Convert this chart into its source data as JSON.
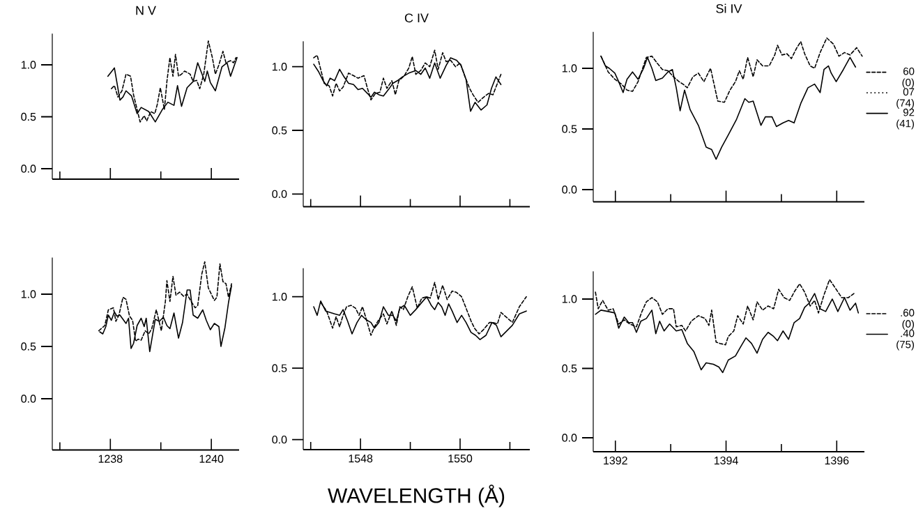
{
  "chart_data": [
    {
      "type": "line",
      "title": "N V",
      "xlim": [
        1236.85,
        1240.55
      ],
      "ylim": [
        -0.1,
        1.3
      ],
      "xticks": [
        {
          "value": 1237,
          "label": null
        },
        1238,
        {
          "value": 1239,
          "label": null
        },
        1240
      ],
      "yticks": [
        {
          "value": 0,
          "label": "0.0"
        },
        {
          "value": 0.5,
          "label": "0.5"
        },
        {
          "value": 1,
          "label": "1.0"
        }
      ],
      "tick_labels": "y",
      "series": [
        {
          "color": "#000000",
          "line_style": "dashed",
          "x": [
            1238.02,
            1238.08,
            1238.15,
            1238.23,
            1238.31,
            1238.4,
            1238.46,
            1238.53,
            1238.59,
            1238.67,
            1238.72,
            1238.8,
            1238.88,
            1238.93,
            1238.99,
            1239.07,
            1239.12,
            1239.18,
            1239.24,
            1239.29,
            1239.35,
            1239.41,
            1239.47,
            1239.58,
            1239.64,
            1239.71,
            1239.77,
            1239.85,
            1239.94,
            1240.02,
            1240.08,
            1240.15,
            1240.23,
            1240.29,
            1240.38,
            1240.44,
            1240.49
          ],
          "values": [
            0.77,
            0.8,
            0.69,
            0.75,
            0.91,
            0.89,
            0.71,
            0.57,
            0.45,
            0.51,
            0.46,
            0.55,
            0.53,
            0.62,
            0.78,
            0.57,
            0.84,
            1.07,
            0.89,
            1.1,
            0.89,
            0.91,
            0.94,
            0.91,
            0.84,
            0.85,
            0.77,
            0.91,
            1.23,
            1.07,
            0.91,
            1.0,
            1.13,
            1.02,
            1.04,
            1.02,
            1.07
          ]
        },
        {
          "color": "#000000",
          "line_style": "solid",
          "x": [
            1237.95,
            1238.08,
            1238.13,
            1238.19,
            1238.25,
            1238.31,
            1238.42,
            1238.53,
            1238.61,
            1238.76,
            1238.89,
            1239.03,
            1239.14,
            1239.26,
            1239.33,
            1239.41,
            1239.52,
            1239.64,
            1239.73,
            1239.87,
            1239.92,
            1239.98,
            1240.08,
            1240.21,
            1240.31,
            1240.38,
            1240.51
          ],
          "values": [
            0.89,
            0.97,
            0.83,
            0.66,
            0.69,
            0.75,
            0.7,
            0.53,
            0.59,
            0.55,
            0.45,
            0.57,
            0.64,
            0.61,
            0.8,
            0.6,
            0.78,
            0.84,
            1.02,
            0.84,
            0.94,
            0.83,
            0.75,
            0.98,
            1.02,
            0.89,
            1.07
          ]
        }
      ]
    },
    {
      "type": "line",
      "title": "C IV",
      "xlim": [
        1546.85,
        1551.4
      ],
      "ylim": [
        -0.1,
        1.2
      ],
      "xticks": [
        {
          "value": 1547,
          "label": null
        },
        1548,
        {
          "value": 1549,
          "label": null
        },
        1550,
        {
          "value": 1551,
          "label": null
        }
      ],
      "yticks": [
        {
          "value": 0,
          "label": "0.0"
        },
        {
          "value": 0.5,
          "label": "0.5"
        },
        {
          "value": 1,
          "label": "1.0"
        }
      ],
      "tick_labels": "y",
      "series": [
        {
          "color": "#000000",
          "line_style": "dashed",
          "x": [
            1547.06,
            1547.13,
            1547.2,
            1547.27,
            1547.37,
            1547.44,
            1547.51,
            1547.58,
            1547.65,
            1547.76,
            1547.86,
            1547.95,
            1548.07,
            1548.14,
            1548.21,
            1548.3,
            1548.39,
            1548.46,
            1548.53,
            1548.63,
            1548.7,
            1548.77,
            1548.88,
            1548.97,
            1549.04,
            1549.11,
            1549.21,
            1549.3,
            1549.39,
            1549.49,
            1549.56,
            1549.65,
            1549.72,
            1549.81,
            1549.91,
            1550.0,
            1550.1,
            1550.19,
            1550.26,
            1550.36,
            1550.47,
            1550.57,
            1550.66,
            1550.75,
            1550.82
          ],
          "values": [
            1.07,
            1.09,
            0.98,
            0.87,
            0.85,
            0.77,
            0.87,
            0.81,
            0.84,
            0.95,
            0.93,
            0.91,
            0.93,
            0.83,
            0.74,
            0.79,
            0.8,
            0.91,
            0.83,
            0.89,
            0.78,
            0.89,
            0.93,
            0.99,
            1.08,
            0.94,
            0.97,
            1.03,
            1.0,
            1.13,
            0.98,
            1.11,
            1.04,
            1.05,
            1.0,
            1.03,
            0.92,
            0.83,
            0.78,
            0.72,
            0.76,
            0.79,
            0.78,
            0.87,
            0.94
          ]
        },
        {
          "color": "#000000",
          "line_style": "solid",
          "x": [
            1547.06,
            1547.16,
            1547.25,
            1547.32,
            1547.39,
            1547.48,
            1547.58,
            1547.67,
            1547.76,
            1547.86,
            1547.95,
            1548.04,
            1548.14,
            1548.21,
            1548.28,
            1548.37,
            1548.46,
            1548.56,
            1548.65,
            1548.74,
            1548.84,
            1548.97,
            1549.11,
            1549.21,
            1549.3,
            1549.39,
            1549.49,
            1549.6,
            1549.72,
            1549.81,
            1549.93,
            1550.02,
            1550.12,
            1550.21,
            1550.3,
            1550.42,
            1550.54,
            1550.63,
            1550.72,
            1550.82
          ],
          "values": [
            1.02,
            0.96,
            0.89,
            0.85,
            0.91,
            0.89,
            0.98,
            0.92,
            0.87,
            0.86,
            0.82,
            0.83,
            0.79,
            0.76,
            0.8,
            0.78,
            0.77,
            0.82,
            0.87,
            0.89,
            0.92,
            0.95,
            0.97,
            0.94,
            0.99,
            0.91,
            1.03,
            0.91,
            1.01,
            1.07,
            1.05,
            1.01,
            0.9,
            0.65,
            0.72,
            0.66,
            0.7,
            0.83,
            0.92,
            0.86
          ]
        }
      ]
    },
    {
      "type": "line",
      "title": "Si IV",
      "xlim": [
        1391.6,
        1396.5
      ],
      "ylim": [
        -0.1,
        1.3
      ],
      "xticks": [
        1392,
        {
          "value": 1393,
          "label": null
        },
        1394,
        {
          "value": 1395,
          "label": null
        },
        1396
      ],
      "yticks": [
        {
          "value": 0,
          "label": "0.0"
        },
        {
          "value": 0.5,
          "label": "0.5"
        },
        {
          "value": 1,
          "label": "1.0"
        }
      ],
      "tick_labels": "y",
      "legend": "right",
      "annotations": [
        "07 (74)"
      ],
      "series": [
        {
          "name": "60 (0)",
          "color": "#000000",
          "line_style": "dashed",
          "x": [
            1391.74,
            1391.87,
            1391.99,
            1392.11,
            1392.21,
            1392.31,
            1392.41,
            1392.56,
            1392.66,
            1392.76,
            1392.85,
            1392.95,
            1393.05,
            1393.15,
            1393.22,
            1393.3,
            1393.4,
            1393.5,
            1393.6,
            1393.72,
            1393.85,
            1393.97,
            1394.07,
            1394.17,
            1394.24,
            1394.31,
            1394.39,
            1394.49,
            1394.56,
            1394.66,
            1394.78,
            1394.88,
            1394.93,
            1395.01,
            1395.1,
            1395.18,
            1395.28,
            1395.35,
            1395.42,
            1395.52,
            1395.6,
            1395.7,
            1395.82,
            1395.94,
            1396.04,
            1396.14,
            1396.24,
            1396.36,
            1396.46
          ],
          "values": [
            1.1,
            0.97,
            0.91,
            0.87,
            0.82,
            0.81,
            0.89,
            1.09,
            1.1,
            1.04,
            0.99,
            0.98,
            0.93,
            0.89,
            0.87,
            0.84,
            0.93,
            0.96,
            0.89,
            1.0,
            0.73,
            0.72,
            0.82,
            0.89,
            0.98,
            0.91,
            1.09,
            0.93,
            1.07,
            1.02,
            1.02,
            1.11,
            1.19,
            1.11,
            1.12,
            1.08,
            1.17,
            1.22,
            1.12,
            1.02,
            1.0,
            1.13,
            1.25,
            1.2,
            1.1,
            1.13,
            1.11,
            1.17,
            1.1
          ]
        },
        {
          "name": "92 (41)",
          "color": "#000000",
          "line_style": "solid",
          "x": [
            1391.74,
            1391.82,
            1391.89,
            1391.99,
            1392.06,
            1392.14,
            1392.21,
            1392.31,
            1392.41,
            1392.51,
            1392.58,
            1392.66,
            1392.73,
            1392.85,
            1392.95,
            1393.03,
            1393.1,
            1393.17,
            1393.25,
            1393.35,
            1393.5,
            1393.64,
            1393.74,
            1393.82,
            1393.92,
            1394.04,
            1394.19,
            1394.34,
            1394.41,
            1394.49,
            1394.63,
            1394.71,
            1394.83,
            1394.91,
            1395.03,
            1395.13,
            1395.23,
            1395.35,
            1395.48,
            1395.6,
            1395.7,
            1395.77,
            1395.85,
            1395.9,
            1395.99,
            1396.12,
            1396.24,
            1396.34
          ],
          "values": [
            1.1,
            1.02,
            1.0,
            0.96,
            0.89,
            0.8,
            0.91,
            0.97,
            0.91,
            1.0,
            1.09,
            1.0,
            0.9,
            0.92,
            0.97,
            0.99,
            0.84,
            0.65,
            0.82,
            0.66,
            0.53,
            0.35,
            0.33,
            0.25,
            0.35,
            0.45,
            0.58,
            0.75,
            0.72,
            0.73,
            0.53,
            0.6,
            0.6,
            0.52,
            0.55,
            0.57,
            0.55,
            0.71,
            0.84,
            0.87,
            0.8,
            0.99,
            1.02,
            0.96,
            0.89,
            0.99,
            1.09,
            1.01
          ]
        }
      ]
    },
    {
      "type": "line",
      "xlim": [
        1236.85,
        1240.55
      ],
      "ylim": [
        -0.49,
        1.35
      ],
      "yticks": [
        {
          "value": 0,
          "label": "0.0"
        },
        {
          "value": 0.5,
          "label": "0.5"
        },
        {
          "value": 1,
          "label": "1.0"
        }
      ],
      "xticks": [
        {
          "value": 1237,
          "label": null
        },
        1238,
        {
          "value": 1239,
          "label": null
        },
        1240
      ],
      "series": [
        {
          "color": "#000000",
          "line_style": "dashed",
          "x": [
            1237.77,
            1237.89,
            1237.96,
            1238.06,
            1238.11,
            1238.17,
            1238.25,
            1238.31,
            1238.38,
            1238.44,
            1238.5,
            1238.55,
            1238.61,
            1238.69,
            1238.76,
            1238.82,
            1238.91,
            1239.01,
            1239.09,
            1239.12,
            1239.18,
            1239.24,
            1239.3,
            1239.37,
            1239.45,
            1239.52,
            1239.6,
            1239.68,
            1239.73,
            1239.81,
            1239.87,
            1239.94,
            1240.06,
            1240.11,
            1240.17,
            1240.23,
            1240.29,
            1240.34,
            1240.4
          ],
          "values": [
            0.65,
            0.7,
            0.85,
            0.87,
            0.74,
            0.8,
            0.97,
            0.95,
            0.79,
            0.75,
            0.55,
            0.57,
            0.56,
            0.65,
            0.62,
            0.67,
            0.85,
            0.65,
            0.93,
            1.13,
            0.93,
            1.17,
            0.99,
            1.02,
            0.98,
            1.0,
            0.93,
            0.87,
            0.89,
            1.19,
            1.31,
            1.06,
            0.94,
            0.97,
            1.29,
            1.12,
            1.1,
            0.97,
            1.1
          ]
        },
        {
          "color": "#000000",
          "line_style": "solid",
          "x": [
            1237.79,
            1237.85,
            1237.91,
            1237.96,
            1238.02,
            1238.08,
            1238.13,
            1238.19,
            1238.31,
            1238.36,
            1238.41,
            1238.46,
            1238.53,
            1238.61,
            1238.67,
            1238.71,
            1238.78,
            1238.84,
            1238.89,
            1238.97,
            1239.05,
            1239.12,
            1239.18,
            1239.26,
            1239.35,
            1239.43,
            1239.52,
            1239.58,
            1239.64,
            1239.73,
            1239.83,
            1239.9,
            1239.98,
            1240.06,
            1240.15,
            1240.19,
            1240.27,
            1240.34,
            1240.4
          ],
          "values": [
            0.64,
            0.62,
            0.69,
            0.8,
            0.75,
            0.83,
            0.79,
            0.8,
            0.72,
            0.77,
            0.48,
            0.53,
            0.7,
            0.77,
            0.69,
            0.77,
            0.45,
            0.62,
            0.76,
            0.74,
            0.78,
            0.7,
            0.67,
            0.82,
            0.58,
            0.73,
            1.04,
            1.04,
            0.8,
            0.77,
            0.85,
            0.75,
            0.66,
            0.72,
            0.69,
            0.5,
            0.68,
            0.92,
            1.08
          ]
        }
      ]
    },
    {
      "type": "line",
      "xlabel": "WAVELENGTH (Å)",
      "xlim": [
        1546.85,
        1551.4
      ],
      "ylim": [
        -0.07,
        1.2
      ],
      "yticks": [
        {
          "value": 0,
          "label": "0.0"
        },
        {
          "value": 0.5,
          "label": "0.5"
        },
        {
          "value": 1,
          "label": "1.0"
        }
      ],
      "xticks": [
        {
          "value": 1547,
          "label": null
        },
        1548,
        {
          "value": 1549,
          "label": null
        },
        1550,
        {
          "value": 1551,
          "label": null
        }
      ],
      "series": [
        {
          "color": "#000000",
          "line_style": "dashed",
          "x": [
            1547.2,
            1547.32,
            1547.44,
            1547.51,
            1547.58,
            1547.65,
            1547.72,
            1547.81,
            1547.9,
            1547.97,
            1548.04,
            1548.11,
            1548.21,
            1548.28,
            1548.37,
            1548.46,
            1548.53,
            1548.63,
            1548.72,
            1548.79,
            1548.86,
            1548.95,
            1549.04,
            1549.14,
            1549.23,
            1549.33,
            1549.4,
            1549.49,
            1549.56,
            1549.65,
            1549.74,
            1549.84,
            1549.93,
            1550.03,
            1550.12,
            1550.22,
            1550.29,
            1550.38,
            1550.47,
            1550.59,
            1550.66,
            1550.75,
            1550.82,
            1551.05,
            1551.19,
            1551.33
          ],
          "values": [
            0.96,
            0.9,
            0.78,
            0.86,
            0.79,
            0.87,
            0.93,
            0.94,
            0.92,
            0.87,
            0.93,
            0.85,
            0.73,
            0.79,
            0.84,
            0.88,
            0.81,
            0.9,
            0.8,
            0.93,
            0.91,
            1.0,
            1.07,
            0.92,
            0.99,
            1.0,
            0.99,
            1.1,
            0.98,
            1.08,
            0.98,
            1.04,
            1.03,
            1.0,
            0.92,
            0.83,
            0.78,
            0.74,
            0.77,
            0.82,
            0.82,
            0.81,
            0.89,
            0.82,
            0.93,
            1.0
          ]
        },
        {
          "color": "#000000",
          "line_style": "solid",
          "x": [
            1547.06,
            1547.13,
            1547.2,
            1547.3,
            1547.39,
            1547.48,
            1547.58,
            1547.65,
            1547.74,
            1547.83,
            1547.93,
            1548.02,
            1548.11,
            1548.21,
            1548.28,
            1548.37,
            1548.46,
            1548.56,
            1548.65,
            1548.72,
            1548.79,
            1548.88,
            1549.0,
            1549.11,
            1549.23,
            1549.33,
            1549.42,
            1549.49,
            1549.56,
            1549.63,
            1549.7,
            1549.77,
            1549.84,
            1549.94,
            1550.03,
            1550.12,
            1550.22,
            1550.31,
            1550.4,
            1550.52,
            1550.64,
            1550.73,
            1550.82,
            1551.05,
            1551.19,
            1551.33
          ],
          "values": [
            0.93,
            0.87,
            0.97,
            0.9,
            0.89,
            0.88,
            0.87,
            0.91,
            0.83,
            0.74,
            0.82,
            0.87,
            0.84,
            0.82,
            0.78,
            0.82,
            0.93,
            0.87,
            0.87,
            0.83,
            0.92,
            0.94,
            0.87,
            0.91,
            0.96,
            1.0,
            0.94,
            0.91,
            0.96,
            0.93,
            0.87,
            0.95,
            0.9,
            0.82,
            0.87,
            0.82,
            0.75,
            0.73,
            0.7,
            0.73,
            0.82,
            0.8,
            0.72,
            0.8,
            0.88,
            0.9
          ]
        }
      ]
    },
    {
      "type": "line",
      "xlim": [
        1391.6,
        1396.5
      ],
      "ylim": [
        -0.1,
        1.2
      ],
      "yticks": [
        {
          "value": 0,
          "label": "0.0"
        },
        {
          "value": 0.5,
          "label": "0.5"
        },
        {
          "value": 1,
          "label": "1.0"
        }
      ],
      "xticks": [
        1392,
        {
          "value": 1393,
          "label": null
        },
        1394,
        {
          "value": 1395,
          "label": null
        },
        1396
      ],
      "legend": "right",
      "series": [
        {
          "name": ".60 (0)",
          "color": "#000000",
          "line_style": "dashed",
          "x": [
            1391.64,
            1391.69,
            1391.77,
            1391.87,
            1391.96,
            1392.06,
            1392.16,
            1392.26,
            1392.38,
            1392.48,
            1392.56,
            1392.66,
            1392.76,
            1392.85,
            1392.95,
            1393.05,
            1393.1,
            1393.2,
            1393.27,
            1393.37,
            1393.5,
            1393.62,
            1393.69,
            1393.74,
            1393.82,
            1393.89,
            1393.99,
            1394.04,
            1394.14,
            1394.21,
            1394.31,
            1394.39,
            1394.49,
            1394.56,
            1394.66,
            1394.76,
            1394.86,
            1394.95,
            1395.05,
            1395.15,
            1395.23,
            1395.33,
            1395.42,
            1395.52,
            1395.6,
            1395.67,
            1395.77,
            1395.87,
            1395.99,
            1396.09,
            1396.21,
            1396.31
          ],
          "values": [
            1.05,
            0.93,
            0.99,
            0.92,
            0.93,
            0.82,
            0.85,
            0.82,
            0.8,
            0.91,
            0.98,
            1.01,
            0.98,
            0.89,
            0.93,
            0.93,
            0.8,
            0.81,
            0.77,
            0.84,
            0.88,
            0.86,
            0.81,
            0.92,
            0.69,
            0.68,
            0.67,
            0.73,
            0.77,
            0.88,
            0.82,
            0.95,
            0.85,
            0.98,
            0.92,
            0.95,
            0.93,
            1.07,
            1.01,
            0.99,
            1.05,
            1.11,
            1.05,
            0.95,
            0.99,
            0.9,
            1.03,
            1.14,
            1.07,
            1.01,
            1.01,
            1.04
          ]
        },
        {
          "name": ".40 (75)",
          "color": "#000000",
          "line_style": "solid",
          "x": [
            1391.64,
            1391.74,
            1391.87,
            1391.99,
            1392.06,
            1392.16,
            1392.24,
            1392.31,
            1392.38,
            1392.46,
            1392.56,
            1392.66,
            1392.73,
            1392.8,
            1392.88,
            1392.98,
            1393.1,
            1393.2,
            1393.3,
            1393.42,
            1393.55,
            1393.64,
            1393.77,
            1393.87,
            1393.94,
            1394.04,
            1394.17,
            1394.27,
            1394.36,
            1394.46,
            1394.56,
            1394.66,
            1394.76,
            1394.86,
            1394.93,
            1395.03,
            1395.13,
            1395.23,
            1395.33,
            1395.42,
            1395.5,
            1395.6,
            1395.7,
            1395.8,
            1395.92,
            1396.02,
            1396.14,
            1396.24,
            1396.34,
            1396.39
          ],
          "values": [
            0.89,
            0.92,
            0.91,
            0.9,
            0.79,
            0.87,
            0.83,
            0.83,
            0.76,
            0.84,
            0.86,
            0.92,
            0.75,
            0.84,
            0.77,
            0.82,
            0.77,
            0.78,
            0.68,
            0.62,
            0.49,
            0.54,
            0.53,
            0.51,
            0.47,
            0.56,
            0.59,
            0.66,
            0.72,
            0.68,
            0.61,
            0.71,
            0.76,
            0.73,
            0.7,
            0.77,
            0.71,
            0.83,
            0.86,
            0.94,
            0.97,
            1.04,
            0.93,
            0.91,
            1.0,
            0.91,
            1.01,
            0.92,
            0.97,
            0.9
          ]
        }
      ]
    }
  ]
}
